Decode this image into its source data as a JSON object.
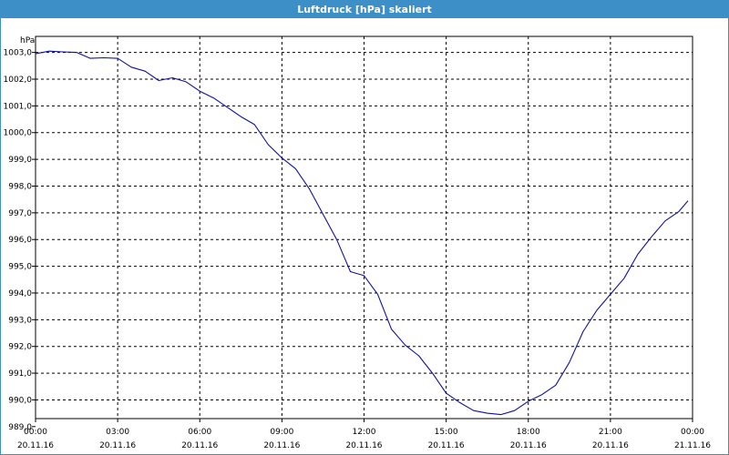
{
  "window": {
    "title": "Luftdruck [hPa] skaliert"
  },
  "colors": {
    "titlebar": "#3d8fc7",
    "line": "#1010a0",
    "grid": "#000000"
  },
  "chart_data": {
    "type": "line",
    "title": "Luftdruck [hPa] skaliert",
    "unit_label": "hPa",
    "ylim": [
      989.3,
      1003.6
    ],
    "xlim": [
      "2016-11-20 00:00",
      "2016-11-21 00:00"
    ],
    "grid": "dashed",
    "y_ticks": [
      {
        "v": 1003,
        "label": "1003,0"
      },
      {
        "v": 1002,
        "label": "1002,0"
      },
      {
        "v": 1001,
        "label": "1001,0"
      },
      {
        "v": 1000,
        "label": "1000,0"
      },
      {
        "v": 999,
        "label": "999,0"
      },
      {
        "v": 998,
        "label": "998,0"
      },
      {
        "v": 997,
        "label": "997,0"
      },
      {
        "v": 996,
        "label": "996,0"
      },
      {
        "v": 995,
        "label": "995,0"
      },
      {
        "v": 994,
        "label": "994,0"
      },
      {
        "v": 993,
        "label": "993,0"
      },
      {
        "v": 992,
        "label": "992,0"
      },
      {
        "v": 991,
        "label": "991,0"
      },
      {
        "v": 990,
        "label": "990,0"
      },
      {
        "v": 989,
        "label": "989,0"
      }
    ],
    "x_ticks": [
      {
        "h": 0,
        "time": "00:00",
        "date": "20.11.16"
      },
      {
        "h": 3,
        "time": "03:00",
        "date": "20.11.16"
      },
      {
        "h": 6,
        "time": "06:00",
        "date": "20.11.16"
      },
      {
        "h": 9,
        "time": "09:00",
        "date": "20.11.16"
      },
      {
        "h": 12,
        "time": "12:00",
        "date": "20.11.16"
      },
      {
        "h": 15,
        "time": "15:00",
        "date": "20.11.16"
      },
      {
        "h": 18,
        "time": "18:00",
        "date": "20.11.16"
      },
      {
        "h": 21,
        "time": "21:00",
        "date": "20.11.16"
      },
      {
        "h": 24,
        "time": "00:00",
        "date": "21.11.16"
      }
    ],
    "series": [
      {
        "x": [
          "20.11.16 00:00",
          "20.11.16 00:30",
          "20.11.16 01:00",
          "20.11.16 01:30",
          "20.11.16 02:00",
          "20.11.16 02:30",
          "20.11.16 03:00",
          "20.11.16 03:30",
          "20.11.16 04:00",
          "20.11.16 04:30",
          "20.11.16 05:00",
          "20.11.16 05:30",
          "20.11.16 06:00",
          "20.11.16 06:30",
          "20.11.16 07:00",
          "20.11.16 07:30",
          "20.11.16 08:00",
          "20.11.16 08:30",
          "20.11.16 09:00",
          "20.11.16 09:30",
          "20.11.16 10:00",
          "20.11.16 10:30",
          "20.11.16 11:00",
          "20.11.16 11:30",
          "20.11.16 12:00",
          "20.11.16 12:30",
          "20.11.16 13:00",
          "20.11.16 13:30",
          "20.11.16 14:00",
          "20.11.16 14:30",
          "20.11.16 15:00",
          "20.11.16 15:30",
          "20.11.16 16:00",
          "20.11.16 16:30",
          "20.11.16 17:00",
          "20.11.16 17:30",
          "20.11.16 18:00",
          "20.11.16 18:30",
          "20.11.16 19:00",
          "20.11.16 19:30",
          "20.11.16 20:00",
          "20.11.16 20:30",
          "20.11.16 21:00",
          "20.11.16 21:30",
          "20.11.16 22:00",
          "20.11.16 22:30",
          "20.11.16 23:00",
          "20.11.16 23:30",
          "20.11.16 23:50"
        ],
        "values": [
          1002.95,
          1003.05,
          1003.02,
          1003.0,
          1002.78,
          1002.8,
          1002.78,
          1002.45,
          1002.3,
          1001.95,
          1002.05,
          1001.9,
          1001.55,
          1001.3,
          1000.95,
          1000.6,
          1000.3,
          999.55,
          999.05,
          998.65,
          997.9,
          996.95,
          996.0,
          994.8,
          994.65,
          993.95,
          992.65,
          992.05,
          991.65,
          991.0,
          990.25,
          989.9,
          989.6,
          989.5,
          989.45,
          989.6,
          989.95,
          990.2,
          990.55,
          991.4,
          992.55,
          993.35,
          993.95,
          994.55,
          995.45,
          996.1,
          996.7,
          997.05,
          997.45
        ]
      }
    ]
  }
}
